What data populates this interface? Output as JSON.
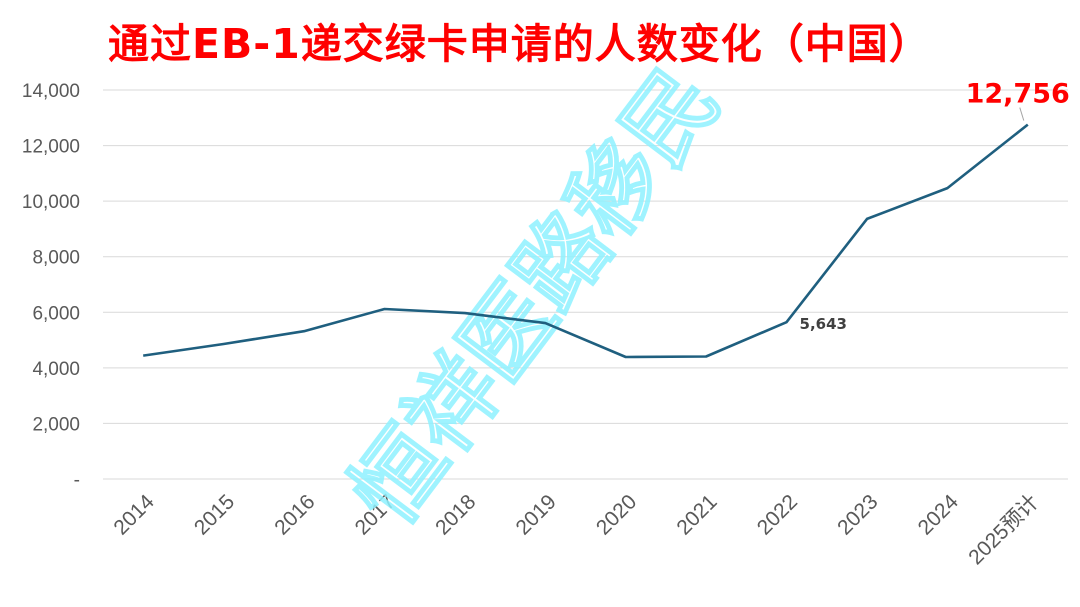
{
  "watermark": "恒祥医路移民",
  "chart_data": {
    "type": "line",
    "title": "通过EB-1递交绿卡申请的人数变化（中国）",
    "categories": [
      "2014",
      "2015",
      "2016",
      "2017",
      "2018",
      "2019",
      "2020",
      "2021",
      "2022",
      "2023",
      "2024",
      "2025预计"
    ],
    "series": [
      {
        "values": [
          4440,
          4860,
          5320,
          6120,
          5970,
          5610,
          4390,
          4410,
          5643,
          9360,
          10470,
          12756
        ]
      }
    ],
    "ylim": [
      0,
      14000
    ],
    "yticks": [
      "-",
      "2,000",
      "4,000",
      "6,000",
      "8,000",
      "10,000",
      "12,000",
      "14,000"
    ],
    "data_labels": [
      {
        "index": 8,
        "text": "5,643"
      },
      {
        "index": 11,
        "text": "12,756"
      }
    ],
    "grid": true,
    "colors": {
      "line": "#1f5f7f",
      "title": "#ff0000",
      "highlight_label": "#ff0000",
      "watermark": "#8ff2ff"
    }
  }
}
